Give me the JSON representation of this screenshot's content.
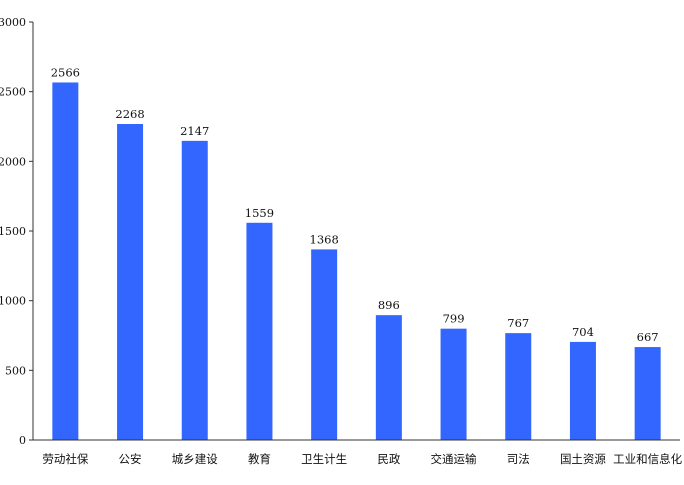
{
  "chart_data": {
    "type": "bar",
    "title": "",
    "xlabel": "",
    "ylabel": "",
    "categories": [
      "劳动社保",
      "公安",
      "城乡建设",
      "教育",
      "卫生计生",
      "民政",
      "交通运输",
      "司法",
      "国土资源",
      "工业和信息化"
    ],
    "values": [
      2566,
      2268,
      2147,
      1559,
      1368,
      896,
      799,
      767,
      704,
      667
    ],
    "ylim": [
      0,
      3000
    ],
    "yticks": [
      0,
      500,
      1000,
      1500,
      2000,
      2500,
      3000
    ],
    "grid": false,
    "legend": "none",
    "bar_color": "#3366ff",
    "show_data_labels": true
  }
}
